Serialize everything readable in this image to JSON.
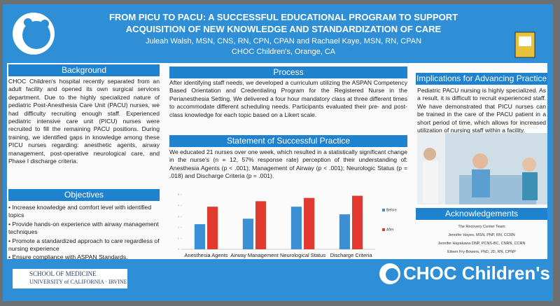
{
  "header": {
    "title": [
      "FROM PICU TO PACU:  A SUCCESSFUL EDUCATIONAL PROGRAM TO SUPPORT",
      "ACQUISITION OF NEW KNOWLEDGE AND STANDARDIZATION OF CARE"
    ],
    "authors": "Juleah Walsh, MSN, CNS, RN, CPN, CPAN and Rachael Kaye, MSN, RN, CPAN",
    "affiliation": "CHOC Children's, Orange, CA"
  },
  "background": {
    "heading": "Background",
    "text": "CHOC Children's hospital recently separated from an adult facility and opened its own surgical services department. Due to the highly specialized nature of pediatric Post-Anesthesia Care Unit (PACU) nurses, we had difficulty recruiting enough staff. Experienced pediatric intensive care unit (PICU) nurses were recruited to fill the remaining PACU positions. During training, we identified gaps in knowledge among these PICU nurses regarding: anesthetic agents, airway management, post-operative neurological care, and Phase I discharge criteria."
  },
  "objectives": {
    "heading": "Objectives",
    "items": [
      "• Increase knowledge and comfort level with identified topics",
      "• Provide hands-on experience with airway management techniques",
      "• Promote a standardized approach to care regardless of nursing experience",
      "• Ensure compliance with ASPAN Standards."
    ]
  },
  "process": {
    "heading": "Process",
    "text": "After identifying staff needs, we developed a curriculum utilizing the ASPAN Competency Based Orientation and Credentialing Program for the Registered Nurse in the Perianesthesia Setting. We delivered a four hour mandatory class at three different times to accommodate different scheduling needs. Participants evaluated their pre- and post-class knowledge for each topic based on a Likert scale."
  },
  "statement": {
    "heading": "Statement of Successful Practice",
    "text": "We educated 21 nurses over one week, which resulted in a statistically significant change in the nurse's (n = 12, 57% response rate) perception of their understanding of:  Anesthesia Agents (p < .001); Management of Airway (p < .001); Neurologic Status (p = .018) and Discharge Criteria (p = .001)."
  },
  "chart_data": {
    "type": "bar",
    "categories": [
      "Anesthesia Agents",
      "Airway Management",
      "Neurological Status",
      "Discharge Criteria"
    ],
    "series": [
      {
        "name": "Before",
        "color": "#3b8fd4",
        "values": [
          2.3,
          2.8,
          3.9,
          3.2
        ]
      },
      {
        "name": "After",
        "color": "#e03a31",
        "values": [
          3.9,
          4.4,
          4.7,
          4.9
        ]
      }
    ],
    "ylim": [
      0,
      5
    ],
    "yticks": [
      0,
      1,
      2,
      3,
      4,
      5
    ],
    "legend": "right"
  },
  "implications": {
    "heading": "Implications for Advancing Practice",
    "text": "Pediatric PACU nursing is highly specialized. As a result, it is difficult to recruit experienced staff. We have demonstrated that PICU nurses can be trained in the care of the PACU patient in a short period of time, which allows for increased utilization of nursing staff within a facility."
  },
  "acknowledgements": {
    "heading": "Acknowledgements",
    "lines": [
      "The Recovery Center Team",
      "Jennifer Hayes, MSN, PNP, RN, CCRN",
      "Jennifer Hayakawa DNP, PCNS-BC, CNRN, CCRN",
      "Eileen Fry-Bowers, PhD, JD, RN, CPNP"
    ]
  },
  "footer": {
    "school": "SCHOOL OF MEDICINE",
    "university": "UNIVERSITY of CALIFORNIA · IRVINE",
    "brand": "CHOC Children's"
  }
}
